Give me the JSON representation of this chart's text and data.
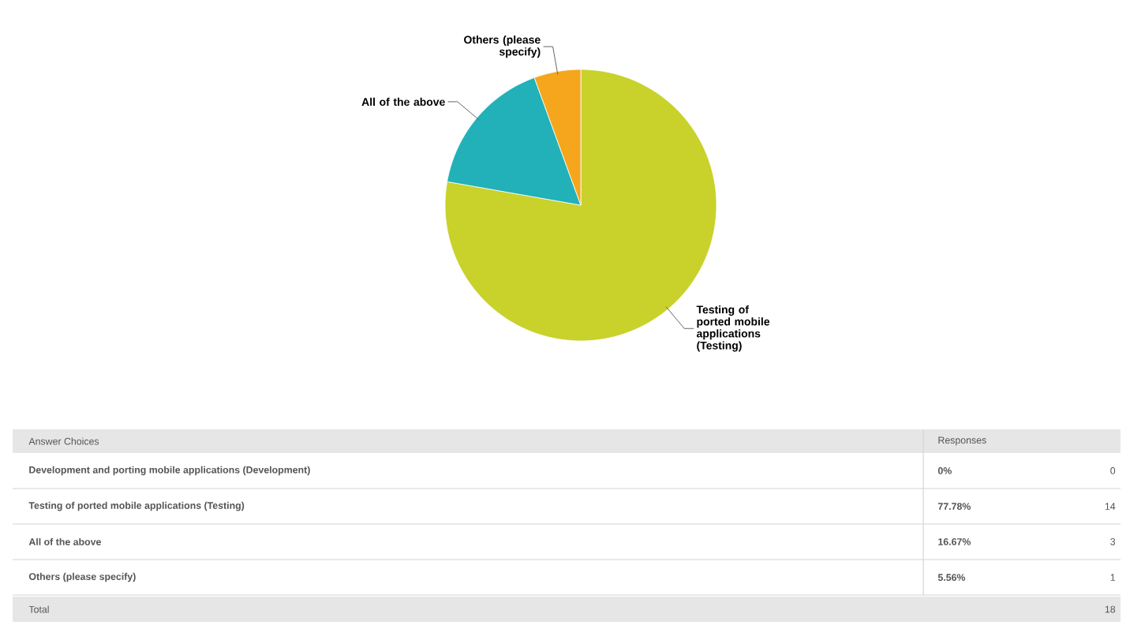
{
  "chart_data": {
    "type": "pie",
    "categories": [
      "Development and porting mobile applications (Development)",
      "Testing of ported mobile applications (Testing)",
      "All of the above",
      "Others (please specify)"
    ],
    "values": [
      0,
      77.78,
      16.67,
      5.56
    ],
    "colors": [
      "#3d85c6",
      "#c9d12b",
      "#22b1b8",
      "#f5a61d"
    ],
    "annotations": [
      "Answer Choices",
      "Responses",
      "0%",
      "0",
      "77.78%",
      "14",
      "16.67%",
      "3",
      "5.56%",
      "1",
      "Total",
      "18"
    ]
  }
}
